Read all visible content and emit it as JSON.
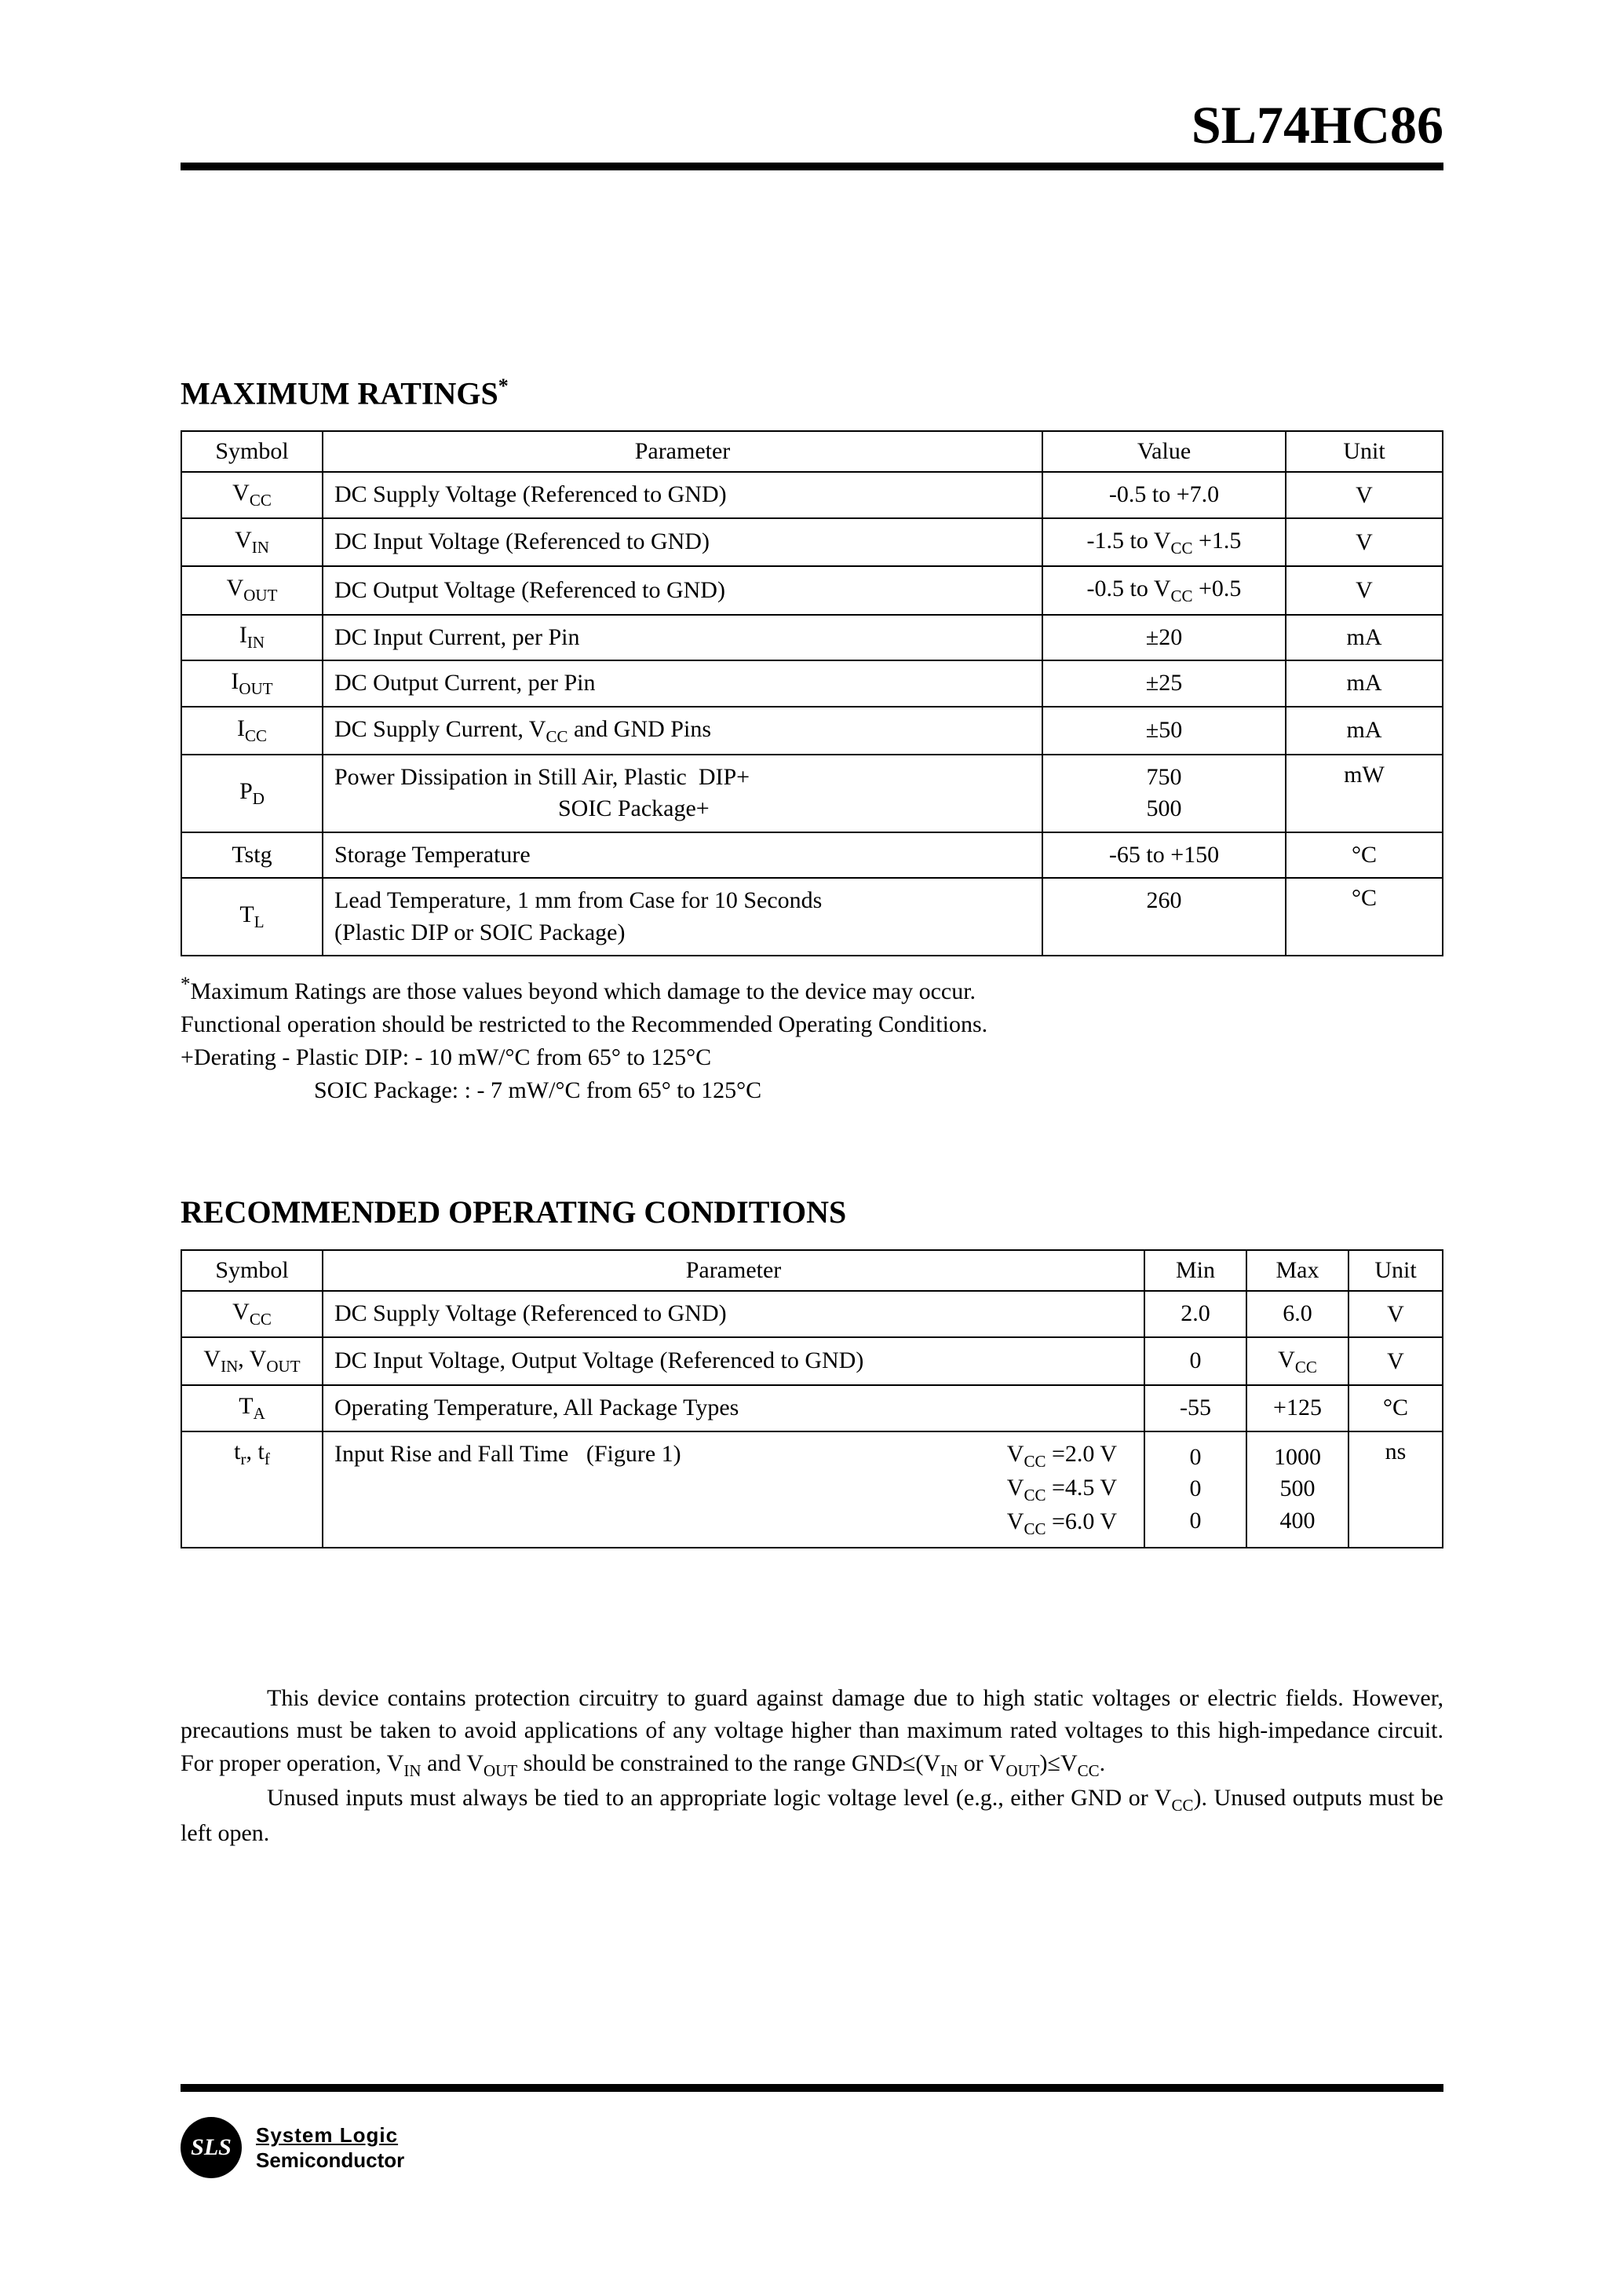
{
  "part_number": "SL74HC86",
  "sections": {
    "max_ratings_title": "MAXIMUM RATINGS",
    "rec_op_title": "RECOMMENDED OPERATING CONDITIONS"
  },
  "table1": {
    "headers": {
      "symbol": "Symbol",
      "parameter": "Parameter",
      "value": "Value",
      "unit": "Unit"
    },
    "rows": [
      {
        "sym_html": "V<sub>CC</sub>",
        "param": "DC Supply Voltage (Referenced to GND)",
        "value_html": "-0.5 to +7.0",
        "unit": "V"
      },
      {
        "sym_html": "V<sub>IN</sub>",
        "param": "DC Input Voltage (Referenced to GND)",
        "value_html": "-1.5 to V<sub>CC</sub> +1.5",
        "unit": "V"
      },
      {
        "sym_html": "V<sub>OUT</sub>",
        "param": "DC Output Voltage (Referenced to GND)",
        "value_html": "-0.5 to V<sub>CC</sub> +0.5",
        "unit": "V"
      },
      {
        "sym_html": "I<sub>IN</sub>",
        "param": "DC Input Current, per Pin",
        "value_html": "±20",
        "unit": "mA"
      },
      {
        "sym_html": "I<sub>OUT</sub>",
        "param": "DC Output Current, per Pin",
        "value_html": "±25",
        "unit": "mA"
      },
      {
        "sym_html": "I<sub>CC</sub>",
        "param_html": "DC Supply Current, V<sub>CC</sub> and GND Pins",
        "value_html": "±50",
        "unit": "mA"
      },
      {
        "sym_html": "P<sub>D</sub>",
        "param_html": "Power Dissipation in Still Air, Plastic&nbsp;&nbsp;DIP+<br>&nbsp;&nbsp;&nbsp;&nbsp;&nbsp;&nbsp;&nbsp;&nbsp;&nbsp;&nbsp;&nbsp;&nbsp;&nbsp;&nbsp;&nbsp;&nbsp;&nbsp;&nbsp;&nbsp;&nbsp;&nbsp;&nbsp;&nbsp;&nbsp;&nbsp;&nbsp;&nbsp;&nbsp;&nbsp;&nbsp;&nbsp;&nbsp;&nbsp;&nbsp;&nbsp;&nbsp;&nbsp;&nbsp;SOIC Package+",
        "value_html": "750<br>500",
        "unit": "mW"
      },
      {
        "sym_html": "Tstg",
        "param": "Storage Temperature",
        "value_html": "-65 to +150",
        "unit": "°C"
      },
      {
        "sym_html": "T<sub>L</sub>",
        "param_html": "Lead Temperature, 1 mm from Case for 10 Seconds<br>(Plastic DIP or SOIC Package)",
        "value_html": "260",
        "unit": "°C"
      }
    ]
  },
  "notes1": {
    "l1": "Maximum Ratings are those values beyond which damage to the device may occur.",
    "l2": "Functional operation should be restricted to the Recommended Operating Conditions.",
    "l3": "+Derating - Plastic DIP: - 10 mW/°C from 65° to 125°C",
    "l4": "SOIC Package: : - 7 mW/°C from 65° to 125°C"
  },
  "table2": {
    "headers": {
      "symbol": "Symbol",
      "parameter": "Parameter",
      "min": "Min",
      "max": "Max",
      "unit": "Unit"
    },
    "rows": [
      {
        "sym_html": "V<sub>CC</sub>",
        "param": "DC Supply Voltage (Referenced to GND)",
        "min": "2.0",
        "max": "6.0",
        "unit": "V"
      },
      {
        "sym_html": "V<sub>IN</sub>, V<sub>OUT</sub>",
        "param": "DC Input Voltage, Output Voltage (Referenced to GND)",
        "min": "0",
        "max_html": "V<sub>CC</sub>",
        "unit": "V"
      },
      {
        "sym_html": "T<sub>A</sub>",
        "param": "Operating Temperature, All Package Types",
        "min": "-55",
        "max": "+125",
        "unit": "°C"
      },
      {
        "sym_html": "t<sub>r</sub>, t<sub>f</sub>",
        "param_left": "Input Rise and Fall Time&nbsp;&nbsp;&nbsp;(Figure 1)",
        "param_right_html": "V<sub>CC</sub> =2.0 V<br>V<sub>CC</sub> =4.5 V<br>V<sub>CC</sub> =6.0 V",
        "min_html": "0<br>0<br>0",
        "max_html": "1000<br>500<br>400",
        "unit": "ns"
      }
    ]
  },
  "body": {
    "p1_html": "This device contains protection circuitry to guard against damage due to high static voltages or electric fields. However, precautions must be taken to avoid applications of any voltage higher than maximum rated voltages to this high-impedance circuit. For proper operation, V<sub>IN</sub> and V<sub>OUT</sub> should be constrained to the range GND≤(V<sub>IN</sub> or V<sub>OUT</sub>)≤V<sub>CC</sub>.",
    "p2_html": "Unused inputs must always be tied to an appropriate logic voltage level (e.g., either GND or V<sub>CC</sub>). Unused outputs must be left open."
  },
  "footer": {
    "badge": "SLS",
    "line1": "System Logic",
    "line2": "Semiconductor"
  }
}
